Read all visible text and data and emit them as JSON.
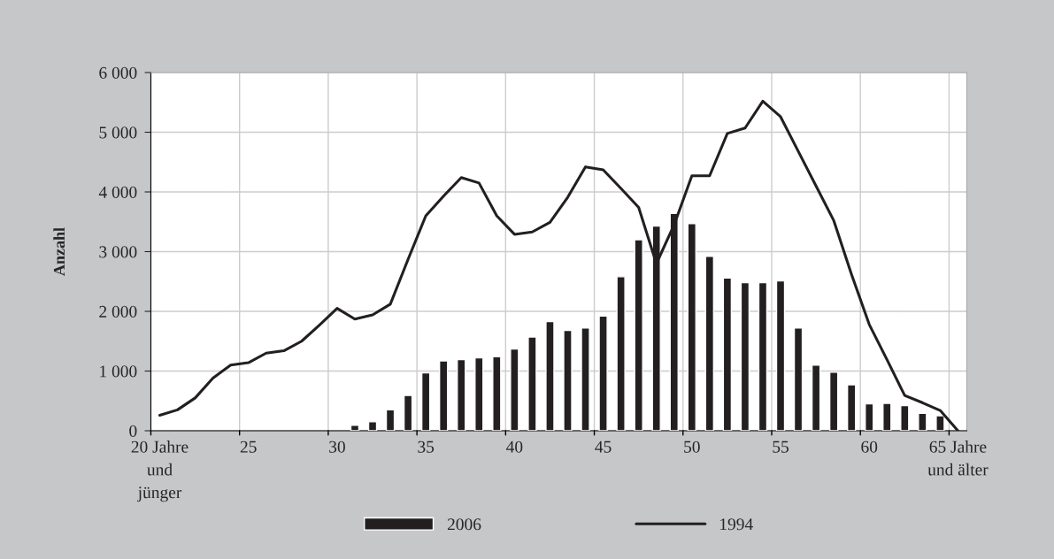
{
  "chart_data": {
    "type": "bar",
    "ylabel": "Anzahl",
    "categories": [
      "20 Jahre\nund\njünger",
      null,
      null,
      null,
      null,
      "25",
      null,
      null,
      null,
      null,
      "30",
      null,
      null,
      null,
      null,
      "35",
      null,
      null,
      null,
      null,
      "40",
      null,
      null,
      null,
      null,
      "45",
      null,
      null,
      null,
      null,
      "50",
      null,
      null,
      null,
      null,
      "55",
      null,
      null,
      null,
      null,
      "60",
      null,
      null,
      null,
      null,
      "65 Jahre\nund älter"
    ],
    "series": [
      {
        "name": "2006",
        "color": "#231f20",
        "values": [
          null,
          null,
          null,
          null,
          null,
          null,
          null,
          null,
          null,
          null,
          null,
          90,
          150,
          350,
          590,
          970,
          1170,
          1190,
          1220,
          1240,
          1370,
          1570,
          1830,
          1680,
          1720,
          1920,
          2580,
          3200,
          3430,
          3640,
          3470,
          2920,
          2560,
          2480,
          2480,
          2510,
          1720,
          1100,
          980,
          770,
          450,
          460,
          420,
          290,
          250,
          null
        ]
      },
      {
        "name": "1994",
        "type": "line",
        "color": "#231f20",
        "values": [
          260,
          350,
          550,
          880,
          1100,
          1140,
          1300,
          1340,
          1500,
          1770,
          2050,
          1870,
          1940,
          2120,
          2870,
          3600,
          3930,
          4240,
          4150,
          3600,
          3290,
          3330,
          3490,
          3910,
          4420,
          4370,
          4060,
          3740,
          2800,
          3450,
          4270,
          4270,
          4980,
          5070,
          5520,
          5260,
          4680,
          4100,
          3520,
          2620,
          1780,
          1190,
          590,
          470,
          340,
          0
        ]
      }
    ],
    "ylim": [
      0,
      6000
    ],
    "yticks": [
      0,
      {
        "value": 1000,
        "label": "1 000"
      },
      {
        "value": 2000,
        "label": "2 000"
      },
      {
        "value": 3000,
        "label": "3 000"
      },
      {
        "value": 4000,
        "label": "4 000"
      },
      {
        "value": 5000,
        "label": "5 000"
      },
      {
        "value": 6000,
        "label": "6 000"
      }
    ],
    "grid": true,
    "legend": "bottom"
  }
}
